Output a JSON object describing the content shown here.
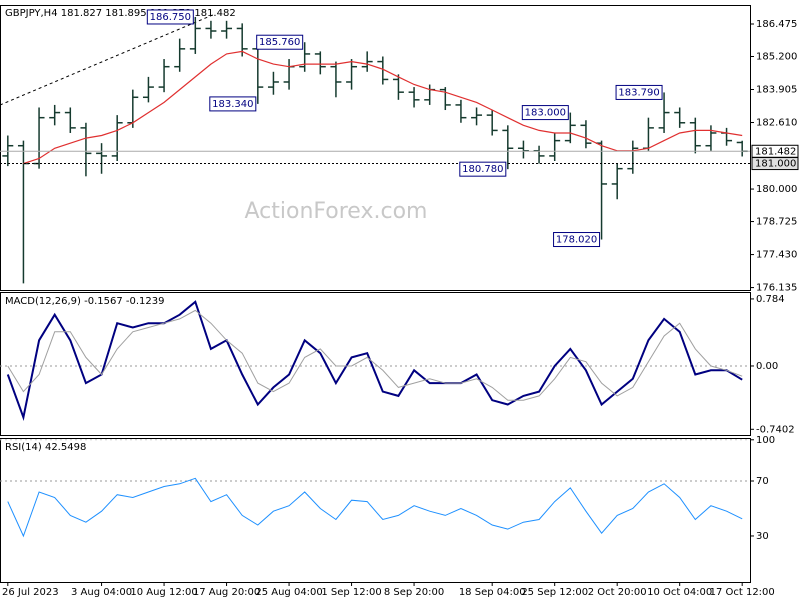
{
  "chart_data": [
    {
      "type": "ohlc",
      "header": "GBPJPY,H4  181.827 181.895 181.278 181.482",
      "watermark": "ActionForex.com",
      "color": "#153a2e",
      "ma_color": "#e03030",
      "open": [
        181.3,
        181.7,
        181.0,
        182.8,
        183.0,
        182.4,
        181.4,
        181.3,
        182.6,
        183.6,
        184.0,
        184.8,
        185.5,
        186.3,
        186.2,
        186.3,
        185.5,
        184.0,
        184.2,
        184.8,
        185.3,
        184.8,
        184.2,
        184.8,
        185.0,
        184.3,
        183.8,
        183.5,
        183.9,
        183.3,
        182.8,
        182.9,
        182.3,
        181.6,
        181.5,
        181.3,
        181.9,
        182.5,
        181.8,
        180.2,
        180.8,
        181.6,
        182.4,
        183.0,
        182.6,
        181.7,
        182.2,
        181.827
      ],
      "high": [
        182.1,
        181.9,
        183.2,
        183.3,
        183.2,
        182.6,
        181.8,
        182.9,
        183.9,
        184.4,
        185.1,
        185.9,
        186.75,
        186.6,
        186.6,
        186.5,
        185.6,
        184.6,
        185.1,
        185.76,
        185.4,
        185.0,
        185.1,
        185.4,
        185.2,
        184.5,
        184.0,
        184.1,
        184.0,
        183.5,
        183.2,
        183.1,
        182.5,
        181.9,
        181.7,
        182.2,
        183.0,
        182.7,
        181.9,
        181.0,
        181.9,
        182.8,
        183.79,
        183.2,
        182.8,
        182.5,
        182.4,
        181.895
      ],
      "low": [
        180.9,
        176.3,
        180.8,
        182.5,
        182.2,
        180.5,
        180.6,
        181.1,
        182.4,
        183.4,
        183.8,
        184.6,
        185.3,
        185.9,
        185.9,
        185.2,
        183.34,
        183.7,
        183.9,
        184.6,
        184.5,
        183.6,
        183.9,
        184.6,
        184.1,
        183.5,
        183.2,
        183.3,
        183.1,
        182.6,
        182.5,
        182.1,
        180.78,
        181.2,
        181.0,
        181.1,
        181.8,
        181.6,
        178.02,
        179.6,
        180.6,
        181.5,
        182.2,
        182.4,
        181.4,
        181.5,
        181.7,
        181.278
      ],
      "close": [
        181.7,
        181.0,
        182.8,
        183.0,
        182.4,
        181.4,
        181.3,
        182.6,
        183.6,
        184.0,
        184.8,
        185.5,
        186.3,
        186.2,
        186.3,
        185.5,
        184.0,
        184.2,
        184.8,
        185.3,
        184.8,
        184.2,
        184.8,
        185.0,
        184.3,
        183.8,
        183.5,
        183.9,
        183.3,
        182.8,
        182.9,
        182.3,
        181.6,
        181.5,
        181.3,
        181.9,
        182.5,
        181.8,
        180.2,
        180.8,
        181.6,
        182.4,
        183.0,
        182.6,
        181.7,
        182.2,
        181.9,
        181.482
      ],
      "ma_values": [
        null,
        181.0,
        181.2,
        181.6,
        181.8,
        182.0,
        182.1,
        182.3,
        182.6,
        183.0,
        183.4,
        183.9,
        184.4,
        184.9,
        185.3,
        185.4,
        185.1,
        184.9,
        184.8,
        184.9,
        184.9,
        184.9,
        185.0,
        184.9,
        184.7,
        184.4,
        184.1,
        183.9,
        183.8,
        183.6,
        183.4,
        183.1,
        182.8,
        182.5,
        182.3,
        182.2,
        182.2,
        182.0,
        181.7,
        181.5,
        181.5,
        181.6,
        181.9,
        182.2,
        182.3,
        182.3,
        182.2,
        182.1
      ],
      "annotations": [
        {
          "value": 186.75,
          "label": "186.750"
        },
        {
          "value": 183.34,
          "label": "183.340"
        },
        {
          "value": 185.76,
          "label": "185.760"
        },
        {
          "value": 183,
          "label": "183.000"
        },
        {
          "value": 183.79,
          "label": "183.790"
        },
        {
          "value": 180.78,
          "label": "180.780"
        },
        {
          "value": 178.02,
          "label": "178.020"
        }
      ],
      "current_price": 181.482,
      "support_level": {
        "value": 181,
        "label": "181.000"
      },
      "ylim": [
        176.04,
        187.22
      ],
      "yticks": [
        186.475,
        {
          "value": 185.2,
          "label": "185.200"
        },
        183.905,
        {
          "value": 182.61,
          "label": "182.610"
        },
        {
          "value": 180,
          "label": "180.000"
        },
        178.725,
        {
          "value": 177.43,
          "label": "177.430"
        },
        176.135
      ]
    },
    {
      "type": "line",
      "title": "MACD(12,26,9) -0.1567 -0.1239",
      "inner_tick_lines": "dotted",
      "series": [
        {
          "color": "#000080",
          "values": [
            -0.1,
            -0.6,
            0.3,
            0.6,
            0.3,
            -0.2,
            -0.1,
            0.5,
            0.45,
            0.5,
            0.5,
            0.6,
            0.75,
            0.2,
            0.3,
            -0.1,
            -0.45,
            -0.25,
            -0.1,
            0.3,
            0.15,
            -0.2,
            0.1,
            0.15,
            -0.3,
            -0.35,
            -0.05,
            -0.2,
            -0.2,
            -0.2,
            -0.1,
            -0.4,
            -0.45,
            -0.35,
            -0.3,
            0.0,
            0.2,
            -0.05,
            -0.45,
            -0.3,
            -0.15,
            0.3,
            0.55,
            0.4,
            -0.1,
            -0.05,
            -0.05,
            -0.16
          ]
        },
        {
          "color": "#a0a0a0",
          "values": [
            0.0,
            -0.3,
            -0.1,
            0.4,
            0.4,
            0.1,
            -0.1,
            0.2,
            0.4,
            0.45,
            0.5,
            0.55,
            0.65,
            0.5,
            0.3,
            0.15,
            -0.2,
            -0.3,
            -0.2,
            0.1,
            0.2,
            0.0,
            0.0,
            0.1,
            -0.05,
            -0.25,
            -0.2,
            -0.15,
            -0.2,
            -0.2,
            -0.15,
            -0.25,
            -0.4,
            -0.4,
            -0.35,
            -0.15,
            0.1,
            0.05,
            -0.2,
            -0.35,
            -0.25,
            0.05,
            0.35,
            0.5,
            0.2,
            0.0,
            -0.05,
            -0.12
          ]
        }
      ],
      "ylim": [
        -0.807,
        0.865
      ],
      "yticks": [
        0.784,
        {
          "value": 0,
          "label": "0.00"
        },
        -0.7402
      ]
    },
    {
      "type": "line",
      "title": "RSI(14) 42.5498",
      "inner_tick_lines": "dotted",
      "series": [
        {
          "color": "#1e90ff",
          "values": [
            55,
            30,
            62,
            58,
            45,
            40,
            48,
            60,
            58,
            62,
            66,
            68,
            72,
            55,
            60,
            45,
            38,
            48,
            52,
            62,
            50,
            42,
            56,
            55,
            42,
            45,
            52,
            48,
            45,
            50,
            45,
            38,
            35,
            40,
            42,
            55,
            65,
            48,
            32,
            45,
            50,
            62,
            68,
            58,
            42,
            52,
            48,
            42.5
          ]
        }
      ],
      "categories": [
        "26 Jul 2023",
        null,
        null,
        null,
        null,
        null,
        "3 Aug 04:00",
        null,
        null,
        null,
        "10 Aug 12:00",
        null,
        null,
        null,
        "17 Aug 20:00",
        null,
        null,
        null,
        "25 Aug 04:00",
        null,
        null,
        null,
        "1 Sep 12:00",
        null,
        null,
        null,
        "8 Sep 20:00",
        null,
        null,
        null,
        null,
        "18 Sep 04:00",
        null,
        null,
        null,
        "25 Sep 12:00",
        null,
        null,
        null,
        "2 Oct 20:00",
        null,
        null,
        null,
        "10 Oct 04:00",
        null,
        null,
        null,
        "17 Oct 12:00"
      ],
      "ylim": [
        -3.5,
        101.3
      ],
      "yticks": [
        100,
        70,
        30
      ]
    }
  ]
}
